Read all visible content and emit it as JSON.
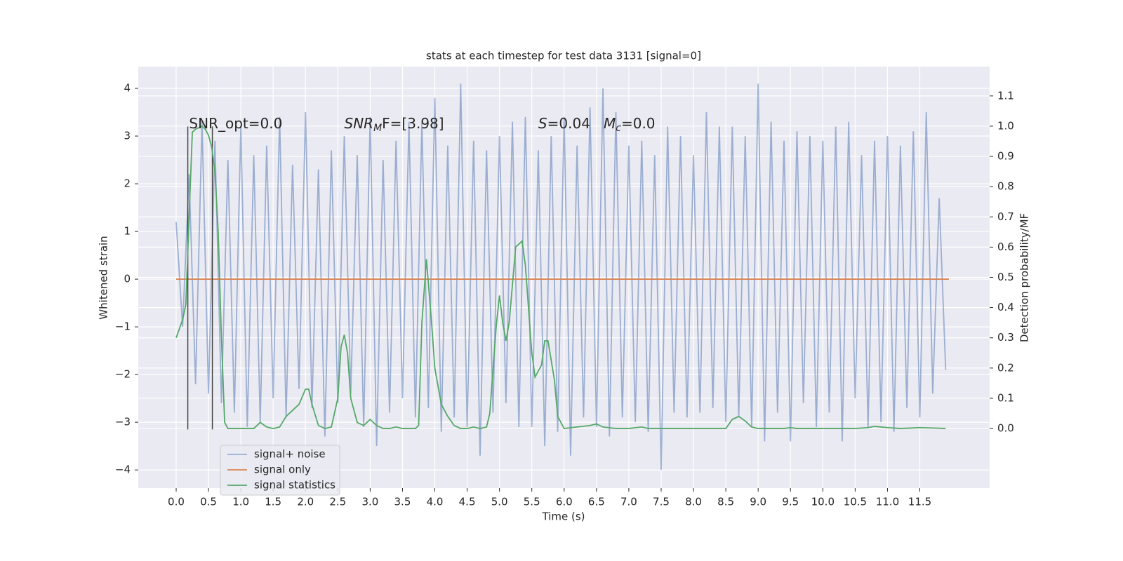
{
  "chart_data": {
    "type": "line",
    "title": "stats at each timestep for test data 3131 [signal=0]",
    "xlabel": "Time (s)",
    "ylabel": "Whitened strain",
    "y2label": "Detection probability/MF",
    "xlim": [
      -0.586,
      12.58
    ],
    "ylim": [
      -4.38,
      4.456
    ],
    "y2lim": [
      -0.197,
      1.197
    ],
    "xticks": [
      {
        "value": 0,
        "label": "0.0"
      },
      0.5,
      {
        "value": 1,
        "label": "1.0"
      },
      1.5,
      {
        "value": 2,
        "label": "2.0"
      },
      2.5,
      {
        "value": 3,
        "label": "3.0"
      },
      3.5,
      {
        "value": 4,
        "label": "4.0"
      },
      4.5,
      {
        "value": 5,
        "label": "5.0"
      },
      5.5,
      {
        "value": 6,
        "label": "6.0"
      },
      6.5,
      {
        "value": 7,
        "label": "7.0"
      },
      7.5,
      {
        "value": 8,
        "label": "8.0"
      },
      8.5,
      {
        "value": 9,
        "label": "9.0"
      },
      9.5,
      {
        "value": 10,
        "label": "10.0"
      },
      10.5,
      {
        "value": 11,
        "label": "11.0"
      },
      11.5
    ],
    "yticks": [
      {
        "value": -4,
        "label": "−4"
      },
      {
        "value": -3,
        "label": "−3"
      },
      {
        "value": -2,
        "label": "−2"
      },
      {
        "value": -1,
        "label": "−1"
      },
      0,
      1,
      2,
      3,
      4
    ],
    "y2ticks": [
      {
        "value": 0,
        "label": "0.0"
      },
      0.1,
      0.2,
      0.3,
      0.4,
      0.5,
      0.6,
      0.7,
      0.8,
      0.9,
      {
        "value": 1,
        "label": "1.0"
      },
      1.1
    ],
    "grid": true,
    "legend": "lower left",
    "series": [
      {
        "name": "signal+ noise",
        "color": "#4c72b0",
        "opacity": 0.5,
        "x": [
          0,
          0.1,
          0.2,
          0.3,
          0.4,
          0.5,
          0.6,
          0.7,
          0.8,
          0.9,
          1,
          1.1,
          1.2,
          1.3,
          1.4,
          1.5,
          1.6,
          1.7,
          1.8,
          1.9,
          2,
          2.1,
          2.2,
          2.3,
          2.4,
          2.5,
          2.6,
          2.7,
          2.8,
          2.9,
          3,
          3.1,
          3.2,
          3.3,
          3.4,
          3.5,
          3.6,
          3.7,
          3.8,
          3.9,
          4,
          4.1,
          4.2,
          4.3,
          4.4,
          4.5,
          4.6,
          4.7,
          4.8,
          4.9,
          5,
          5.1,
          5.2,
          5.3,
          5.4,
          5.5,
          5.6,
          5.7,
          5.8,
          5.9,
          6,
          6.1,
          6.2,
          6.3,
          6.4,
          6.5,
          6.6,
          6.7,
          6.8,
          6.9,
          7,
          7.1,
          7.2,
          7.3,
          7.4,
          7.5,
          7.6,
          7.7,
          7.8,
          7.9,
          8,
          8.1,
          8.2,
          8.3,
          8.4,
          8.5,
          8.6,
          8.7,
          8.8,
          8.9,
          9,
          9.1,
          9.2,
          9.3,
          9.4,
          9.5,
          9.6,
          9.7,
          9.8,
          9.9,
          10,
          10.1,
          10.2,
          10.3,
          10.4,
          10.5,
          10.6,
          10.7,
          10.8,
          10.9,
          11,
          11.1,
          11.2,
          11.3,
          11.4,
          11.5,
          11.6,
          11.7,
          11.8,
          11.9
        ],
        "values": [
          1.2,
          -1.0,
          2.2,
          -2.2,
          3.3,
          -2.4,
          2.9,
          -2.6,
          2.5,
          -2.8,
          3.2,
          -3.1,
          2.6,
          -3.0,
          2.8,
          -2.5,
          3.4,
          -2.9,
          2.4,
          -2.3,
          3.5,
          -2.7,
          2.3,
          -3.3,
          2.7,
          -2.6,
          3.0,
          -2.4,
          2.6,
          -3.1,
          3.4,
          -3.5,
          2.5,
          -2.8,
          2.9,
          -2.5,
          3.3,
          -2.9,
          3.3,
          -2.7,
          3.8,
          -3.2,
          2.8,
          -2.9,
          4.1,
          -3.1,
          2.9,
          -3.7,
          2.7,
          -2.8,
          3.0,
          -2.6,
          3.3,
          -3.1,
          3.4,
          -3.1,
          2.7,
          -3.5,
          3.0,
          -3.2,
          3.4,
          -3.7,
          2.8,
          -2.9,
          3.6,
          -3.1,
          4.0,
          -3.3,
          3.5,
          -2.9,
          2.8,
          -3.0,
          2.9,
          -3.2,
          2.6,
          -4.0,
          3.2,
          -2.8,
          3.0,
          -2.9,
          2.6,
          -2.8,
          3.5,
          -2.7,
          3.2,
          -3.0,
          3.2,
          -2.9,
          3.0,
          -3.1,
          4.1,
          -3.4,
          3.3,
          -2.8,
          2.9,
          -3.4,
          3.1,
          -2.6,
          3.0,
          -3.1,
          2.9,
          -2.8,
          3.2,
          -3.4,
          3.3,
          -2.5,
          2.6,
          -3.1,
          2.9,
          -3.0,
          3.0,
          -3.2,
          2.8,
          -2.7,
          3.1,
          -2.9,
          3.5,
          -2.4,
          1.7,
          -1.9
        ]
      },
      {
        "name": "signal only",
        "color": "#dd8452",
        "x": [
          0,
          11.95
        ],
        "values": [
          0,
          0
        ]
      },
      {
        "name": "signal statistics",
        "color": "#55a868",
        "axis": "y2",
        "x": [
          0,
          0.1,
          0.15,
          0.2,
          0.25,
          0.3,
          0.4,
          0.45,
          0.5,
          0.55,
          0.6,
          0.65,
          0.7,
          0.75,
          0.8,
          1.0,
          1.1,
          1.2,
          1.3,
          1.4,
          1.5,
          1.6,
          1.7,
          1.8,
          1.9,
          2.0,
          2.05,
          2.1,
          2.2,
          2.3,
          2.4,
          2.5,
          2.55,
          2.6,
          2.65,
          2.7,
          2.8,
          2.9,
          3.0,
          3.1,
          3.2,
          3.3,
          3.4,
          3.5,
          3.7,
          3.75,
          3.8,
          3.87,
          3.95,
          4.0,
          4.1,
          4.2,
          4.3,
          4.4,
          4.5,
          4.6,
          4.7,
          4.8,
          4.85,
          4.95,
          5.0,
          5.05,
          5.1,
          5.15,
          5.25,
          5.3,
          5.35,
          5.4,
          5.5,
          5.55,
          5.65,
          5.7,
          5.75,
          5.85,
          5.9,
          6.0,
          6.2,
          6.4,
          6.5,
          6.6,
          6.8,
          7.0,
          7.2,
          7.3,
          8.5,
          8.6,
          8.7,
          8.8,
          8.9,
          9.0,
          9.4,
          9.5,
          9.6,
          10.0,
          10.5,
          10.7,
          10.8,
          11.0,
          11.2,
          11.5,
          11.8,
          11.9
        ],
        "values": [
          0.3,
          0.36,
          0.41,
          0.7,
          0.98,
          0.99,
          1.0,
          0.99,
          0.97,
          0.93,
          0.85,
          0.65,
          0.3,
          0.02,
          0,
          0,
          0,
          0,
          0.02,
          0.005,
          0,
          0.005,
          0.04,
          0.06,
          0.08,
          0.13,
          0.13,
          0.08,
          0.01,
          0,
          0.005,
          0.1,
          0.27,
          0.31,
          0.25,
          0.1,
          0.02,
          0.01,
          0.03,
          0.01,
          0,
          0,
          0.005,
          0,
          0,
          0.01,
          0.35,
          0.56,
          0.35,
          0.2,
          0.08,
          0.04,
          0.01,
          0,
          0,
          0.005,
          0,
          0.005,
          0.05,
          0.34,
          0.44,
          0.35,
          0.29,
          0.35,
          0.6,
          0.61,
          0.62,
          0.54,
          0.25,
          0.17,
          0.21,
          0.29,
          0.29,
          0.16,
          0.04,
          0,
          0.005,
          0.01,
          0.015,
          0.005,
          0,
          0,
          0.005,
          0,
          0,
          0.03,
          0.04,
          0.025,
          0.005,
          0,
          0,
          0.003,
          0,
          0,
          0,
          0.003,
          0.007,
          0.003,
          0,
          0.003,
          0.001,
          0
        ]
      }
    ],
    "vlines": {
      "x": [
        0.18,
        0.56
      ],
      "ymin": -3.15,
      "ymax": 3.2,
      "color": "#444444"
    },
    "annotations": [
      {
        "x": 0.2,
        "y": 3.25,
        "parts": [
          {
            "text": "SNR_opt=0.0"
          }
        ]
      },
      {
        "x": 2.6,
        "y": 3.25,
        "parts": [
          {
            "text": "SNR",
            "style": "italic"
          },
          {
            "text": "M",
            "style": "sub"
          },
          {
            "text": "F=[3.98]",
            "style": "italic-start"
          }
        ]
      },
      {
        "x": 5.6,
        "y": 3.25,
        "parts": [
          {
            "text": "S",
            "style": "italic"
          },
          {
            "text": "=0.04   "
          },
          {
            "text": "M",
            "style": "italic"
          },
          {
            "text": "c",
            "style": "sub"
          },
          {
            "text": "=0.0"
          }
        ]
      }
    ]
  }
}
